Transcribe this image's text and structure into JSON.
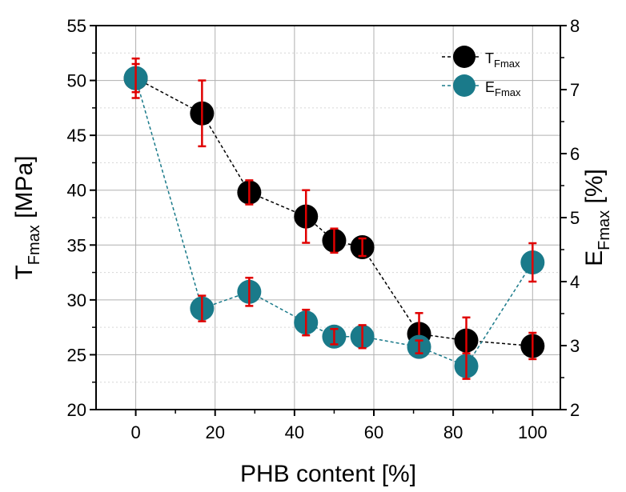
{
  "chart_data": {
    "type": "scatter",
    "xlabel": "PHB content [%]",
    "ylabel_left": {
      "main": "T",
      "sub": "Fmax",
      "unit": " [MPa]"
    },
    "ylabel_right": {
      "main": "E",
      "sub": "Fmax",
      "unit": " [%]"
    },
    "xlim": [
      -10,
      107
    ],
    "ylim_left": [
      20,
      55
    ],
    "ylim_right": [
      2,
      8
    ],
    "x_ticks": [
      0,
      20,
      40,
      60,
      80,
      100
    ],
    "y_left_ticks": [
      20,
      25,
      30,
      35,
      40,
      45,
      50,
      55
    ],
    "y_right_ticks": [
      2,
      3,
      4,
      5,
      6,
      7,
      8
    ],
    "grid": true,
    "legend_position": "top-right",
    "series": [
      {
        "name": "T",
        "name_sub": "Fmax",
        "axis": "left",
        "color": "#000000",
        "line_style": "dashed",
        "x": [
          0,
          16.7,
          28.6,
          42.9,
          50,
          57.1,
          71.4,
          83.3,
          100
        ],
        "y": [
          50.2,
          47.0,
          39.8,
          37.6,
          35.4,
          34.8,
          26.9,
          26.3,
          25.8
        ],
        "err": [
          1.8,
          3.0,
          1.1,
          2.4,
          1.1,
          0.8,
          1.9,
          2.1,
          1.2
        ]
      },
      {
        "name": "E",
        "name_sub": "Fmax",
        "axis": "right",
        "color": "#1a7a8a",
        "line_style": "dashed",
        "x": [
          0,
          16.7,
          28.6,
          42.9,
          50,
          57.1,
          71.4,
          83.3,
          100
        ],
        "y": [
          7.18,
          3.58,
          3.84,
          3.36,
          3.14,
          3.14,
          2.98,
          2.68,
          4.3
        ],
        "err": [
          0.22,
          0.2,
          0.22,
          0.2,
          0.12,
          0.18,
          0.1,
          0.2,
          0.3
        ]
      }
    ],
    "error_bar_color": "#e00000"
  }
}
